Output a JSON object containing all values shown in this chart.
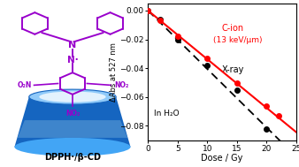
{
  "xlabel": "Dose / Gy",
  "ylabel": "ΔAbs at 527 nm",
  "xlim": [
    0,
    25
  ],
  "ylim": [
    -0.09,
    0.005
  ],
  "yticks": [
    0,
    -0.02,
    -0.04,
    -0.06,
    -0.08
  ],
  "xticks": [
    0,
    5,
    10,
    15,
    20,
    25
  ],
  "c_ion_doses": [
    0,
    2,
    5,
    10,
    15,
    20,
    22
  ],
  "c_ion_abs": [
    0,
    -0.007,
    -0.018,
    -0.033,
    -0.05,
    -0.066,
    -0.073
  ],
  "c_ion_color": "#ff0000",
  "xray_doses": [
    0,
    2,
    5,
    10,
    15,
    20
  ],
  "xray_abs": [
    0,
    -0.006,
    -0.02,
    -0.038,
    -0.055,
    -0.082
  ],
  "xray_color": "#000000",
  "c_ion_slope": -0.00337,
  "xray_slope": -0.00405,
  "bg_color": "#ffffff",
  "purple": "#9900cc",
  "cone_dark": "#1565c0",
  "cone_mid": "#42a5f5",
  "cone_light": "#90caf9",
  "cone_lightest": "#e3f2fd"
}
